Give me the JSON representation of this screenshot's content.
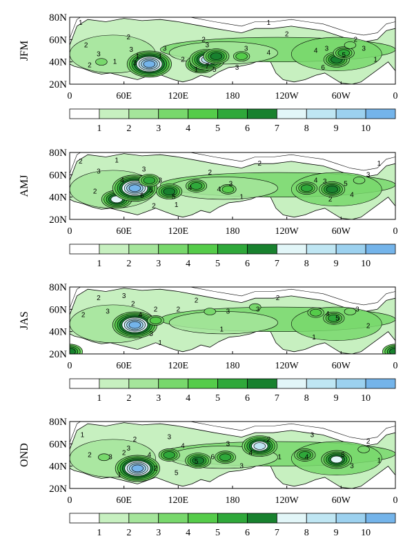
{
  "chart_data": {
    "type": "heatmap",
    "layout": "4 stacked map panels, each with its own horizontal colorbar",
    "x_ticks": [
      "0",
      "60E",
      "120E",
      "180",
      "120W",
      "60W",
      "0"
    ],
    "y_ticks": [
      "20N",
      "40N",
      "60N",
      "80N"
    ],
    "colorbar": {
      "labels": [
        "1",
        "2",
        "3",
        "4",
        "5",
        "6",
        "7",
        "8",
        "9",
        "10"
      ],
      "colors": [
        "#ffffff",
        "#c7f0c0",
        "#a5e59b",
        "#78d86c",
        "#55cc4a",
        "#2fa83a",
        "#18812e",
        "#e2f6f8",
        "#bfe6f3",
        "#9cd1ef",
        "#74b4ea"
      ]
    },
    "panels": [
      {
        "season": "JFM",
        "hotspots": [
          {
            "lon": 35,
            "lat": 40,
            "value": 3
          },
          {
            "lon": 68,
            "lat": 45,
            "value": 2
          },
          {
            "lon": 88,
            "lat": 38,
            "value": 10
          },
          {
            "lon": 118,
            "lat": 40,
            "value": 2
          },
          {
            "lon": 145,
            "lat": 38,
            "value": 7
          },
          {
            "lon": 152,
            "lat": 42,
            "value": 8
          },
          {
            "lon": 162,
            "lat": 45,
            "value": 6
          },
          {
            "lon": 190,
            "lat": 45,
            "value": 4
          },
          {
            "lon": 295,
            "lat": 42,
            "value": 6
          },
          {
            "lon": 303,
            "lat": 48,
            "value": 5
          },
          {
            "lon": 310,
            "lat": 55,
            "value": 3
          }
        ],
        "contour_labels": [
          {
            "text": "1",
            "lon": 12,
            "lat": 75
          },
          {
            "text": "2",
            "lon": 18,
            "lat": 55
          },
          {
            "text": "3",
            "lon": 32,
            "lat": 47
          },
          {
            "text": "2",
            "lon": 22,
            "lat": 37
          },
          {
            "text": "1",
            "lon": 50,
            "lat": 40
          },
          {
            "text": "2",
            "lon": 65,
            "lat": 62
          },
          {
            "text": "3",
            "lon": 68,
            "lat": 51
          },
          {
            "text": "1",
            "lon": 75,
            "lat": 45
          },
          {
            "text": "3",
            "lon": 72,
            "lat": 39
          },
          {
            "text": "3",
            "lon": 105,
            "lat": 52
          },
          {
            "text": "1",
            "lon": 100,
            "lat": 45
          },
          {
            "text": "2",
            "lon": 125,
            "lat": 42
          },
          {
            "text": "1",
            "lon": 140,
            "lat": 33
          },
          {
            "text": "7",
            "lon": 152,
            "lat": 36
          },
          {
            "text": "5",
            "lon": 160,
            "lat": 33
          },
          {
            "text": "3",
            "lon": 152,
            "lat": 55
          },
          {
            "text": "2",
            "lon": 148,
            "lat": 60
          },
          {
            "text": "3",
            "lon": 195,
            "lat": 52
          },
          {
            "text": "4",
            "lon": 220,
            "lat": 48
          },
          {
            "text": "3",
            "lon": 185,
            "lat": 35
          },
          {
            "text": "1",
            "lon": 220,
            "lat": 75
          },
          {
            "text": "2",
            "lon": 240,
            "lat": 65
          },
          {
            "text": "4",
            "lon": 272,
            "lat": 50
          },
          {
            "text": "3",
            "lon": 284,
            "lat": 52
          },
          {
            "text": "5",
            "lon": 303,
            "lat": 46
          },
          {
            "text": "6",
            "lon": 280,
            "lat": 35
          },
          {
            "text": "2",
            "lon": 316,
            "lat": 60
          },
          {
            "text": "3",
            "lon": 325,
            "lat": 52
          },
          {
            "text": "1",
            "lon": 338,
            "lat": 42
          }
        ]
      },
      {
        "season": "AMJ",
        "hotspots": [
          {
            "lon": 25,
            "lat": 40,
            "value": 2
          },
          {
            "lon": 52,
            "lat": 38,
            "value": 7
          },
          {
            "lon": 72,
            "lat": 48,
            "value": 10
          },
          {
            "lon": 88,
            "lat": 55,
            "value": 5
          },
          {
            "lon": 110,
            "lat": 45,
            "value": 6
          },
          {
            "lon": 140,
            "lat": 50,
            "value": 5
          },
          {
            "lon": 175,
            "lat": 47,
            "value": 4
          },
          {
            "lon": 262,
            "lat": 48,
            "value": 5
          },
          {
            "lon": 290,
            "lat": 47,
            "value": 6
          },
          {
            "lon": 320,
            "lat": 55,
            "value": 3
          }
        ],
        "contour_labels": [
          {
            "text": "2",
            "lon": 12,
            "lat": 72
          },
          {
            "text": "3",
            "lon": 32,
            "lat": 63
          },
          {
            "text": "1",
            "lon": 52,
            "lat": 73
          },
          {
            "text": "3",
            "lon": 82,
            "lat": 65
          },
          {
            "text": "4",
            "lon": 58,
            "lat": 55
          },
          {
            "text": "2",
            "lon": 28,
            "lat": 45
          },
          {
            "text": "5",
            "lon": 90,
            "lat": 46
          },
          {
            "text": "6",
            "lon": 80,
            "lat": 41
          },
          {
            "text": "3",
            "lon": 100,
            "lat": 55
          },
          {
            "text": "2",
            "lon": 93,
            "lat": 32
          },
          {
            "text": "5",
            "lon": 115,
            "lat": 40
          },
          {
            "text": "4",
            "lon": 133,
            "lat": 48
          },
          {
            "text": "1",
            "lon": 118,
            "lat": 33
          },
          {
            "text": "2",
            "lon": 155,
            "lat": 62
          },
          {
            "text": "4",
            "lon": 165,
            "lat": 47
          },
          {
            "text": "3",
            "lon": 178,
            "lat": 52
          },
          {
            "text": "1",
            "lon": 190,
            "lat": 40
          },
          {
            "text": "2",
            "lon": 210,
            "lat": 70
          },
          {
            "text": "4",
            "lon": 272,
            "lat": 55
          },
          {
            "text": "3",
            "lon": 282,
            "lat": 54
          },
          {
            "text": "5",
            "lon": 305,
            "lat": 52
          },
          {
            "text": "4",
            "lon": 312,
            "lat": 42
          },
          {
            "text": "2",
            "lon": 288,
            "lat": 38
          },
          {
            "text": "3",
            "lon": 330,
            "lat": 60
          },
          {
            "text": "1",
            "lon": 342,
            "lat": 70
          }
        ]
      },
      {
        "season": "JAS",
        "hotspots": [
          {
            "lon": 60,
            "lat": 42,
            "value": 4
          },
          {
            "lon": 72,
            "lat": 46,
            "value": 10
          },
          {
            "lon": 95,
            "lat": 50,
            "value": 4
          },
          {
            "lon": 155,
            "lat": 58,
            "value": 3
          },
          {
            "lon": 205,
            "lat": 62,
            "value": 3
          },
          {
            "lon": 272,
            "lat": 57,
            "value": 4
          },
          {
            "lon": 292,
            "lat": 52,
            "value": 5
          },
          {
            "lon": 310,
            "lat": 58,
            "value": 3
          },
          {
            "lon": 0,
            "lat": 22,
            "value": 6
          },
          {
            "lon": 360,
            "lat": 22,
            "value": 6
          }
        ],
        "contour_labels": [
          {
            "text": "2",
            "lon": 32,
            "lat": 70
          },
          {
            "text": "3",
            "lon": 60,
            "lat": 72
          },
          {
            "text": "2",
            "lon": 70,
            "lat": 65
          },
          {
            "text": "2",
            "lon": 15,
            "lat": 55
          },
          {
            "text": "3",
            "lon": 42,
            "lat": 58
          },
          {
            "text": "4",
            "lon": 78,
            "lat": 55
          },
          {
            "text": "3",
            "lon": 90,
            "lat": 38
          },
          {
            "text": "2",
            "lon": 95,
            "lat": 60
          },
          {
            "text": "1",
            "lon": 100,
            "lat": 30
          },
          {
            "text": "2",
            "lon": 120,
            "lat": 60
          },
          {
            "text": "2",
            "lon": 140,
            "lat": 68
          },
          {
            "text": "3",
            "lon": 175,
            "lat": 58
          },
          {
            "text": "3",
            "lon": 208,
            "lat": 60
          },
          {
            "text": "1",
            "lon": 168,
            "lat": 42
          },
          {
            "text": "2",
            "lon": 230,
            "lat": 70
          },
          {
            "text": "4",
            "lon": 285,
            "lat": 56
          },
          {
            "text": "5",
            "lon": 296,
            "lat": 52
          },
          {
            "text": "3",
            "lon": 318,
            "lat": 60
          },
          {
            "text": "2",
            "lon": 330,
            "lat": 45
          },
          {
            "text": "1",
            "lon": 270,
            "lat": 35
          }
        ]
      },
      {
        "season": "OND",
        "hotspots": [
          {
            "lon": 38,
            "lat": 48,
            "value": 3
          },
          {
            "lon": 75,
            "lat": 38,
            "value": 10
          },
          {
            "lon": 110,
            "lat": 50,
            "value": 5
          },
          {
            "lon": 142,
            "lat": 45,
            "value": 6
          },
          {
            "lon": 172,
            "lat": 48,
            "value": 5
          },
          {
            "lon": 210,
            "lat": 58,
            "value": 8
          },
          {
            "lon": 260,
            "lat": 50,
            "value": 5
          },
          {
            "lon": 295,
            "lat": 46,
            "value": 7
          },
          {
            "lon": 325,
            "lat": 55,
            "value": 3
          }
        ],
        "contour_labels": [
          {
            "text": "1",
            "lon": 14,
            "lat": 68
          },
          {
            "text": "2",
            "lon": 22,
            "lat": 50
          },
          {
            "text": "3",
            "lon": 45,
            "lat": 48
          },
          {
            "text": "2",
            "lon": 60,
            "lat": 52
          },
          {
            "text": "3",
            "lon": 65,
            "lat": 56
          },
          {
            "text": "2",
            "lon": 72,
            "lat": 64
          },
          {
            "text": "1",
            "lon": 55,
            "lat": 32
          },
          {
            "text": "4",
            "lon": 88,
            "lat": 50
          },
          {
            "text": "2",
            "lon": 95,
            "lat": 38
          },
          {
            "text": "3",
            "lon": 110,
            "lat": 66
          },
          {
            "text": "4",
            "lon": 125,
            "lat": 58
          },
          {
            "text": "5",
            "lon": 140,
            "lat": 44
          },
          {
            "text": "5",
            "lon": 118,
            "lat": 34
          },
          {
            "text": "6",
            "lon": 158,
            "lat": 48
          },
          {
            "text": "3",
            "lon": 175,
            "lat": 60
          },
          {
            "text": "4",
            "lon": 200,
            "lat": 52
          },
          {
            "text": "3",
            "lon": 190,
            "lat": 40
          },
          {
            "text": "2",
            "lon": 220,
            "lat": 64
          },
          {
            "text": "1",
            "lon": 232,
            "lat": 48
          },
          {
            "text": "3",
            "lon": 268,
            "lat": 68
          },
          {
            "text": "4",
            "lon": 262,
            "lat": 48
          },
          {
            "text": "5",
            "lon": 302,
            "lat": 50
          },
          {
            "text": "3",
            "lon": 312,
            "lat": 40
          },
          {
            "text": "2",
            "lon": 330,
            "lat": 62
          },
          {
            "text": "1",
            "lon": 342,
            "lat": 45
          }
        ]
      }
    ]
  }
}
